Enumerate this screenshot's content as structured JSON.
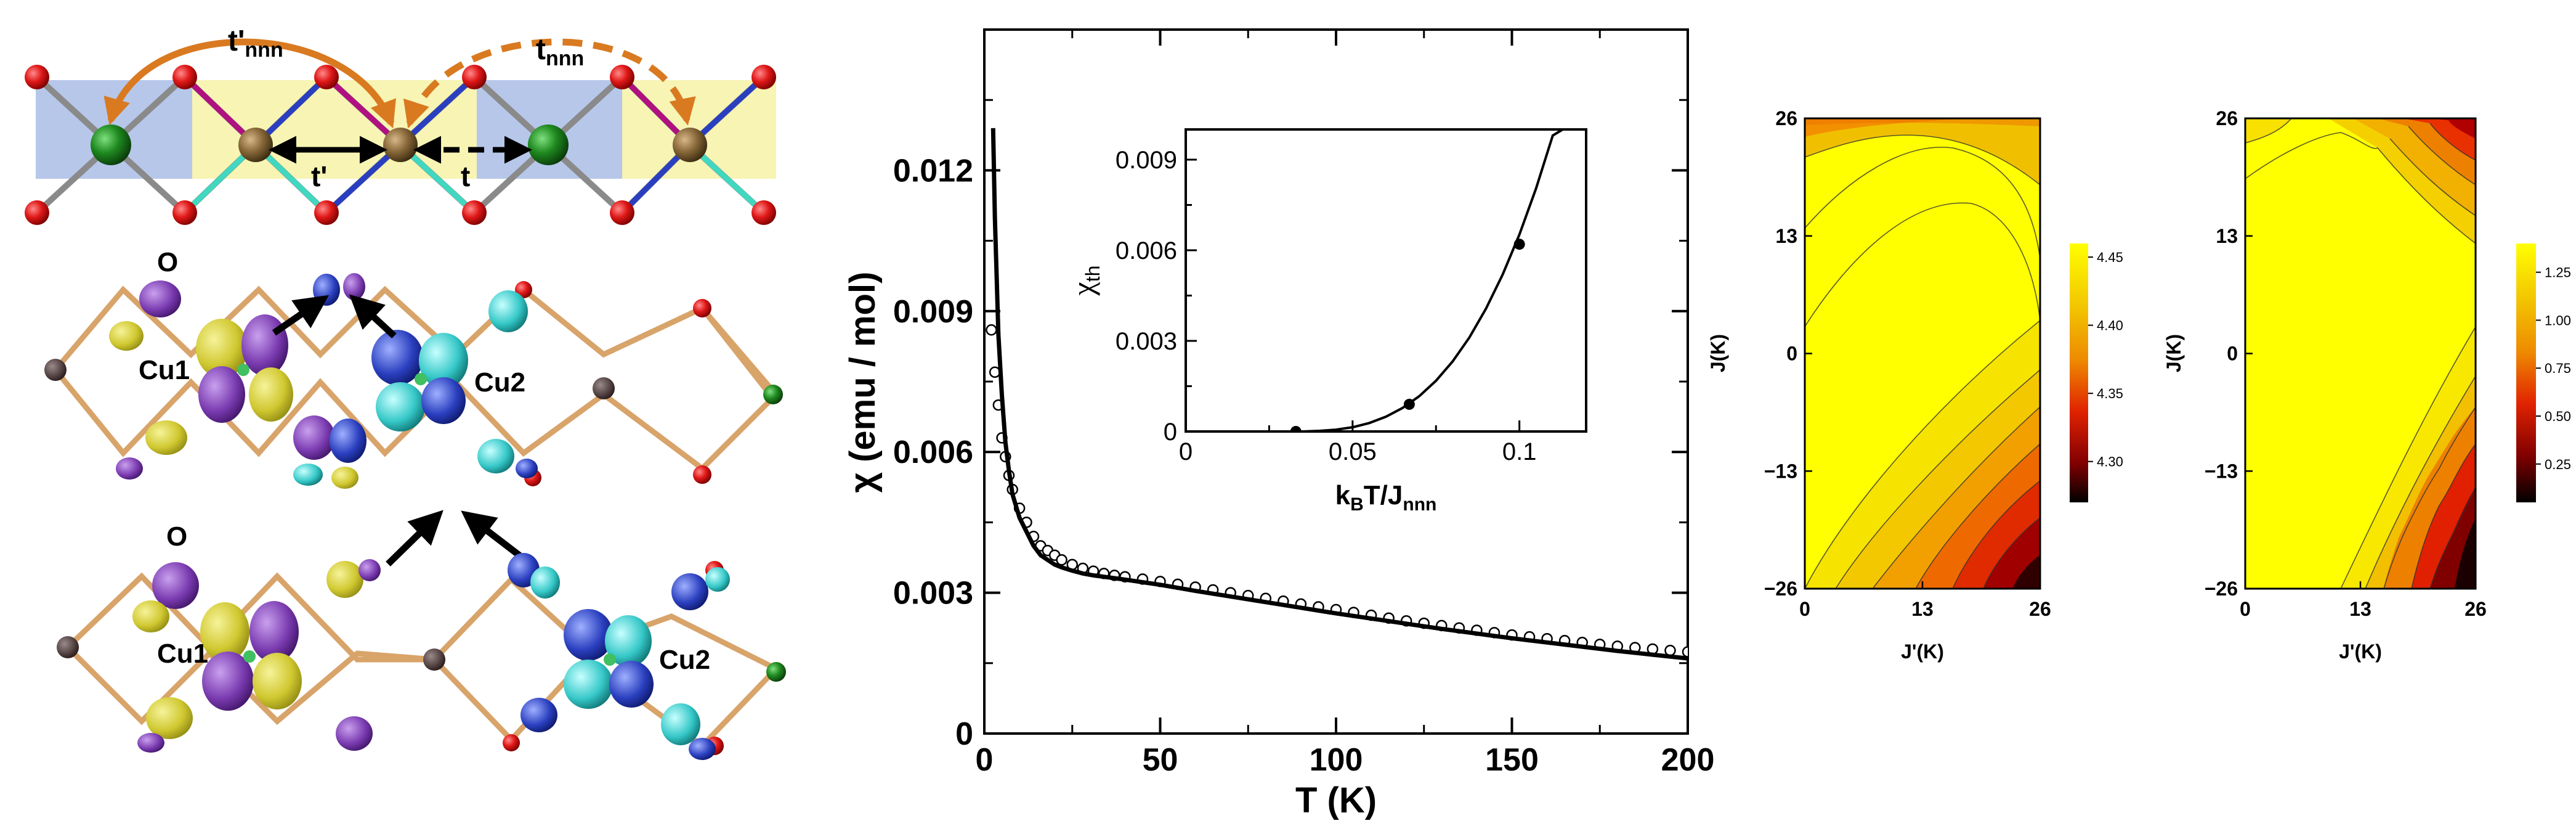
{
  "panel_a": {
    "hop_labels": {
      "t_nnn_prime": "t'",
      "t_nnn_prime_sub": "nnn",
      "t_nnn": "t",
      "t_nnn_sub": "nnn",
      "t_prime": "t'",
      "t": "t"
    },
    "orbital_labels": {
      "oxygen_top": "O",
      "cu1_top": "Cu1",
      "cu2_top": "Cu2",
      "oxygen_bottom": "O",
      "cu1_bottom": "Cu1",
      "cu2_bottom": "Cu2"
    }
  },
  "chart_data": [
    {
      "type": "line",
      "xlabel": "T (K)",
      "ylabel": "χ (emu / mol)",
      "xlim": [
        0,
        200
      ],
      "ylim": [
        0,
        0.015
      ],
      "xticks": [
        0,
        50,
        100,
        150,
        200
      ],
      "yticks": [
        0,
        0.003,
        0.006,
        0.009,
        0.012
      ],
      "xticklabels": [
        "0",
        "50",
        "100",
        "150",
        "200"
      ],
      "yticklabels": [
        "0",
        "0.003",
        "0.006",
        "0.009",
        "0.012"
      ],
      "series": [
        {
          "kind": "markers",
          "x": [
            2,
            3,
            4,
            5,
            6,
            7,
            8,
            10,
            12,
            14,
            16,
            18,
            20,
            22,
            25,
            28,
            31,
            34,
            37,
            40,
            45,
            50,
            55,
            60,
            65,
            70,
            75,
            80,
            85,
            90,
            95,
            100,
            105,
            110,
            115,
            120,
            125,
            130,
            135,
            140,
            145,
            150,
            155,
            160,
            165,
            170,
            175,
            180,
            185,
            190,
            195,
            200
          ],
          "y": [
            0.0086,
            0.0077,
            0.007,
            0.0063,
            0.0059,
            0.0055,
            0.0052,
            0.0048,
            0.0045,
            0.0042,
            0.004,
            0.0039,
            0.0038,
            0.0037,
            0.0036,
            0.00352,
            0.00346,
            0.00341,
            0.00337,
            0.00334,
            0.00329,
            0.00324,
            0.00318,
            0.00312,
            0.00306,
            0.003,
            0.00294,
            0.00288,
            0.00282,
            0.00276,
            0.0027,
            0.00264,
            0.00258,
            0.00252,
            0.00246,
            0.0024,
            0.00235,
            0.0023,
            0.00225,
            0.0022,
            0.00215,
            0.0021,
            0.00206,
            0.00202,
            0.00198,
            0.00194,
            0.0019,
            0.00186,
            0.00183,
            0.0018,
            0.00177,
            0.00174
          ]
        },
        {
          "kind": "line",
          "x": [
            2.5,
            3,
            4,
            5,
            6,
            7,
            8,
            10,
            12,
            14,
            16,
            18,
            20,
            22,
            25,
            28,
            31,
            34,
            37,
            40,
            50,
            60,
            70,
            80,
            90,
            100,
            110,
            120,
            130,
            140,
            150,
            160,
            170,
            180,
            190,
            200
          ],
          "y": [
            0.0129,
            0.011,
            0.0085,
            0.0072,
            0.0062,
            0.0056,
            0.0051,
            0.0046,
            0.0043,
            0.004,
            0.0038,
            0.0037,
            0.0036,
            0.00354,
            0.00347,
            0.00341,
            0.00337,
            0.00334,
            0.00331,
            0.00328,
            0.00317,
            0.00304,
            0.00292,
            0.0028,
            0.00268,
            0.00256,
            0.00245,
            0.00234,
            0.00223,
            0.00213,
            0.00203,
            0.00194,
            0.00185,
            0.00176,
            0.00168,
            0.0016
          ]
        }
      ],
      "inset": {
        "type": "line",
        "xlabel": "kBT/Jnnn",
        "ylabel": "χth",
        "xlim": [
          0,
          0.12
        ],
        "ylim": [
          0,
          0.01
        ],
        "xticks": [
          0,
          0.05,
          0.1
        ],
        "yticks": [
          0,
          0.003,
          0.006,
          0.009
        ],
        "xticklabels": [
          "0",
          "0.05",
          "0.1"
        ],
        "yticklabels": [
          "0",
          "0.003",
          "0.006",
          "0.009"
        ],
        "series": [
          {
            "kind": "points",
            "x": [
              0.033,
              0.067,
              0.1
            ],
            "y": [
              0.0,
              0.0009,
              0.0062
            ]
          },
          {
            "kind": "line",
            "x": [
              0.03,
              0.035,
              0.04,
              0.045,
              0.05,
              0.055,
              0.06,
              0.065,
              0.07,
              0.075,
              0.08,
              0.085,
              0.09,
              0.095,
              0.1,
              0.105,
              0.11,
              0.113
            ],
            "y": [
              0.0,
              0.0,
              2e-05,
              6e-05,
              0.00014,
              0.00028,
              0.00049,
              0.00078,
              0.00117,
              0.00168,
              0.00232,
              0.00311,
              0.00407,
              0.0052,
              0.00652,
              0.00805,
              0.0098,
              0.01
            ]
          }
        ]
      }
    },
    {
      "type": "heatmap",
      "xlabel": "J'(K)",
      "ylabel": "J(K)",
      "xticks": [
        0,
        13,
        26
      ],
      "yticks": [
        -26,
        -13,
        0,
        13,
        26
      ],
      "xticklabels": [
        "0",
        "13",
        "26"
      ],
      "yticklabels": [
        "−26",
        "−13",
        "0",
        "13",
        "26"
      ],
      "colorbar": {
        "ticks": [
          "4.45",
          "4.40",
          "4.35",
          "4.30"
        ],
        "values": [
          4.45,
          4.4,
          4.35,
          4.3
        ],
        "min": 4.27,
        "max": 4.46
      }
    },
    {
      "type": "heatmap",
      "xlabel": "J'(K)",
      "ylabel": "J(K)",
      "xticks": [
        0,
        13,
        26
      ],
      "yticks": [
        -26,
        -13,
        0,
        13,
        26
      ],
      "xticklabels": [
        "0",
        "13",
        "26"
      ],
      "yticklabels": [
        "−26",
        "−13",
        "0",
        "13",
        "26"
      ],
      "colorbar": {
        "ticks": [
          "1.25",
          "1.00",
          "0.75",
          "0.50",
          "0.25"
        ],
        "values": [
          1.25,
          1.0,
          0.75,
          0.5,
          0.25
        ],
        "min": 0.05,
        "max": 1.4
      }
    }
  ],
  "colors": {
    "yellow": "#ffff00",
    "orange_arrow": "#d97a20",
    "red_atom": "#e01818",
    "green_atom": "#1f8a1f",
    "bronze_atom": "#8a6a3a",
    "blue_box": "#a9bde6",
    "yellow_box": "#f7f4b4",
    "lobe_yellow": "#d8d030",
    "lobe_purple": "#7a3bb0",
    "lobe_blue": "#2a3fbf",
    "lobe_cyan": "#36c8c8",
    "bond": "#d8a46a"
  }
}
